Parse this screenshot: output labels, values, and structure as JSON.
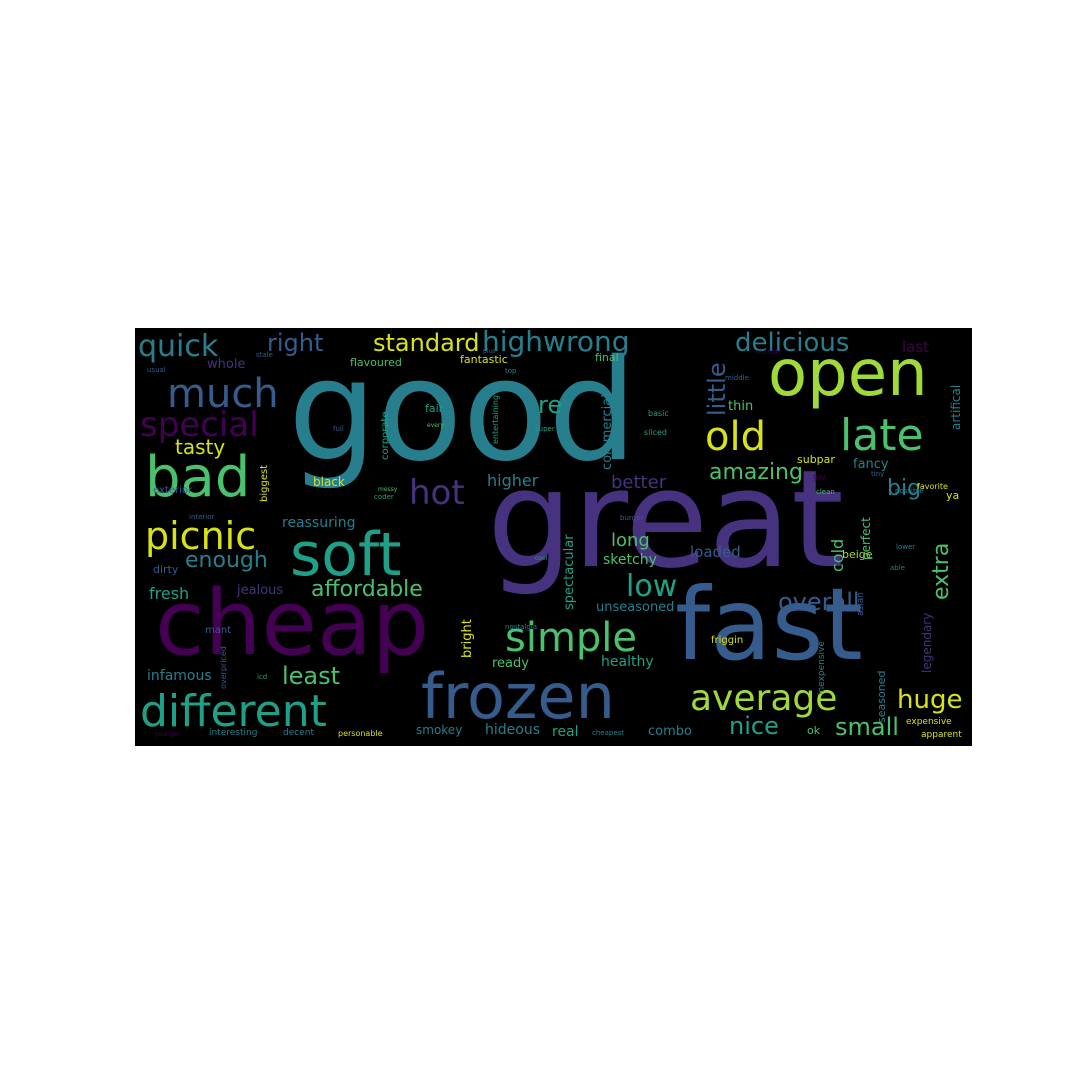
{
  "palette": {
    "yellow": "#d8e219",
    "lime": "#a0da39",
    "green": "#4ac16d",
    "teal": "#1fa187",
    "cyan": "#277f8e",
    "blue": "#365c8d",
    "indigo": "#46327e",
    "purple": "#440154"
  },
  "words": [
    "good",
    "great",
    "cheap",
    "fast",
    "frozen",
    "soft",
    "open",
    "different",
    "bad",
    "much",
    "late",
    "old",
    "simple",
    "average",
    "picnic",
    "special",
    "hot",
    "highwrong",
    "delicious",
    "quick",
    "right",
    "standard",
    "low",
    "huge",
    "little",
    "tasty",
    "overall",
    "affordable",
    "amazing",
    "enough",
    "extra",
    "least",
    "small",
    "nice",
    "big",
    "re",
    "better",
    "higher",
    "long",
    "fresh",
    "cold",
    "fancy",
    "infamous",
    "reassuring",
    "jealous",
    "loaded",
    "sketchy",
    "spectacular",
    "commercial",
    "healthy",
    "hideous",
    "ready",
    "bright",
    "unseasoned",
    "real",
    "combo",
    "smokey",
    "whole",
    "last",
    "artifical",
    "exterior",
    "thin",
    "subpar",
    "legendary",
    "seasoned",
    "beige",
    "perfect",
    "ya",
    "fantastic",
    "final",
    "fair",
    "flavoured",
    "corporate",
    "black",
    "biggest",
    "dirty",
    "mant",
    "friggin",
    "inexpensive",
    "expensive",
    "apparent",
    "asian",
    "interesting",
    "decent",
    "personable",
    "cheapest",
    "ok",
    "favorite",
    "possible",
    "usual",
    "stale",
    "top",
    "middle",
    "basic",
    "sliced",
    "super",
    "entertaining",
    "every",
    "full",
    "tiny",
    "clean",
    "interior",
    "coder",
    "messy",
    "burger",
    "cool",
    "lower",
    "able",
    "nostalgia",
    "plus",
    "overpriced",
    "younger",
    "gay",
    "icd",
    "outside"
  ]
}
